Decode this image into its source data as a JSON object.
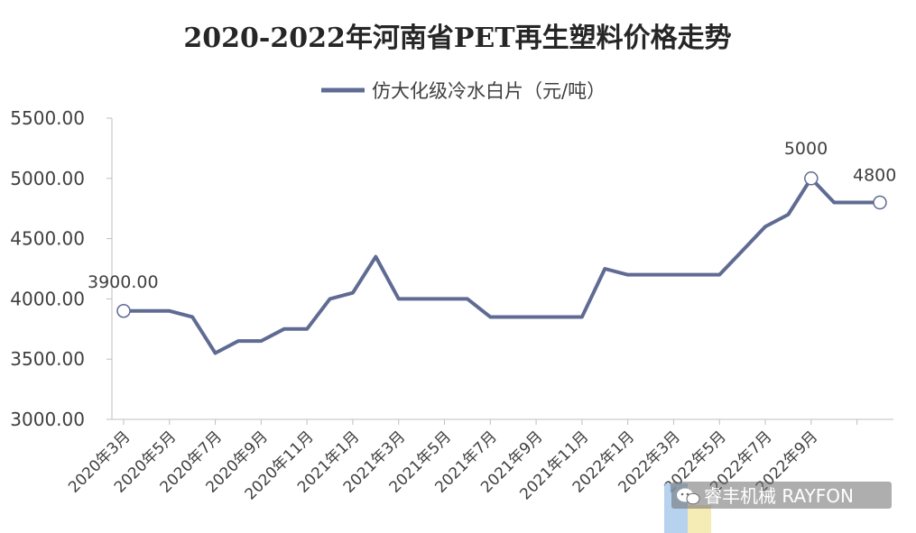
{
  "chart_data": {
    "type": "line",
    "title": "2020-2022年河南省PET再生塑料价格走势",
    "legend": "top-center",
    "series": [
      {
        "name": "仿大化级冷水白片（元/吨）",
        "color": "#5f6b93",
        "values": [
          3900,
          3900,
          3900,
          3850,
          3550,
          3650,
          3650,
          3750,
          3750,
          4000,
          4050,
          4350,
          4000,
          4000,
          4000,
          4000,
          3850,
          3850,
          3850,
          3850,
          3850,
          4250,
          4200,
          4200,
          4200,
          4200,
          4200,
          4400,
          4600,
          4700,
          5000,
          4800,
          4800,
          4800
        ]
      }
    ],
    "x_positions": [
      0,
      1,
      2,
      3,
      4,
      5,
      6,
      7,
      8,
      9,
      10,
      11,
      12,
      13,
      14,
      15,
      16,
      17,
      18,
      19,
      20,
      21,
      22,
      23,
      24,
      25,
      26,
      27,
      28,
      29,
      30,
      31,
      32,
      33
    ],
    "ytick_values": [
      3000,
      3500,
      4000,
      4500,
      5000,
      5500
    ],
    "yticks": [
      "3000.00",
      "3500.00",
      "4000.00",
      "4500.00",
      "5000.00",
      "5500.00"
    ],
    "ylim": [
      3000,
      5500
    ],
    "xlim": [
      0,
      33
    ],
    "xtick_positions": [
      0,
      2,
      4,
      6,
      8,
      10,
      12,
      14,
      16,
      18,
      20,
      22,
      24,
      26,
      28,
      30,
      32
    ],
    "xticks": [
      "2020年3月",
      "2020年5月",
      "2020年7月",
      "2020年9月",
      "2020年11月",
      "2021年1月",
      "2021年3月",
      "2021年5月",
      "2021年7月",
      "2021年9月",
      "2021年11月",
      "2022年1月",
      "2022年3月",
      "2022年5月",
      "2022年7月",
      "2022年9月",
      ""
    ],
    "data_labels": [
      {
        "index": 0,
        "text": "3900.00"
      },
      {
        "index": 30,
        "text": "5000"
      },
      {
        "index": 33,
        "text": "4800"
      }
    ],
    "grid": false
  },
  "watermark": {
    "text": "睿丰机械 RAYFON",
    "icon": "wechat-icon"
  }
}
